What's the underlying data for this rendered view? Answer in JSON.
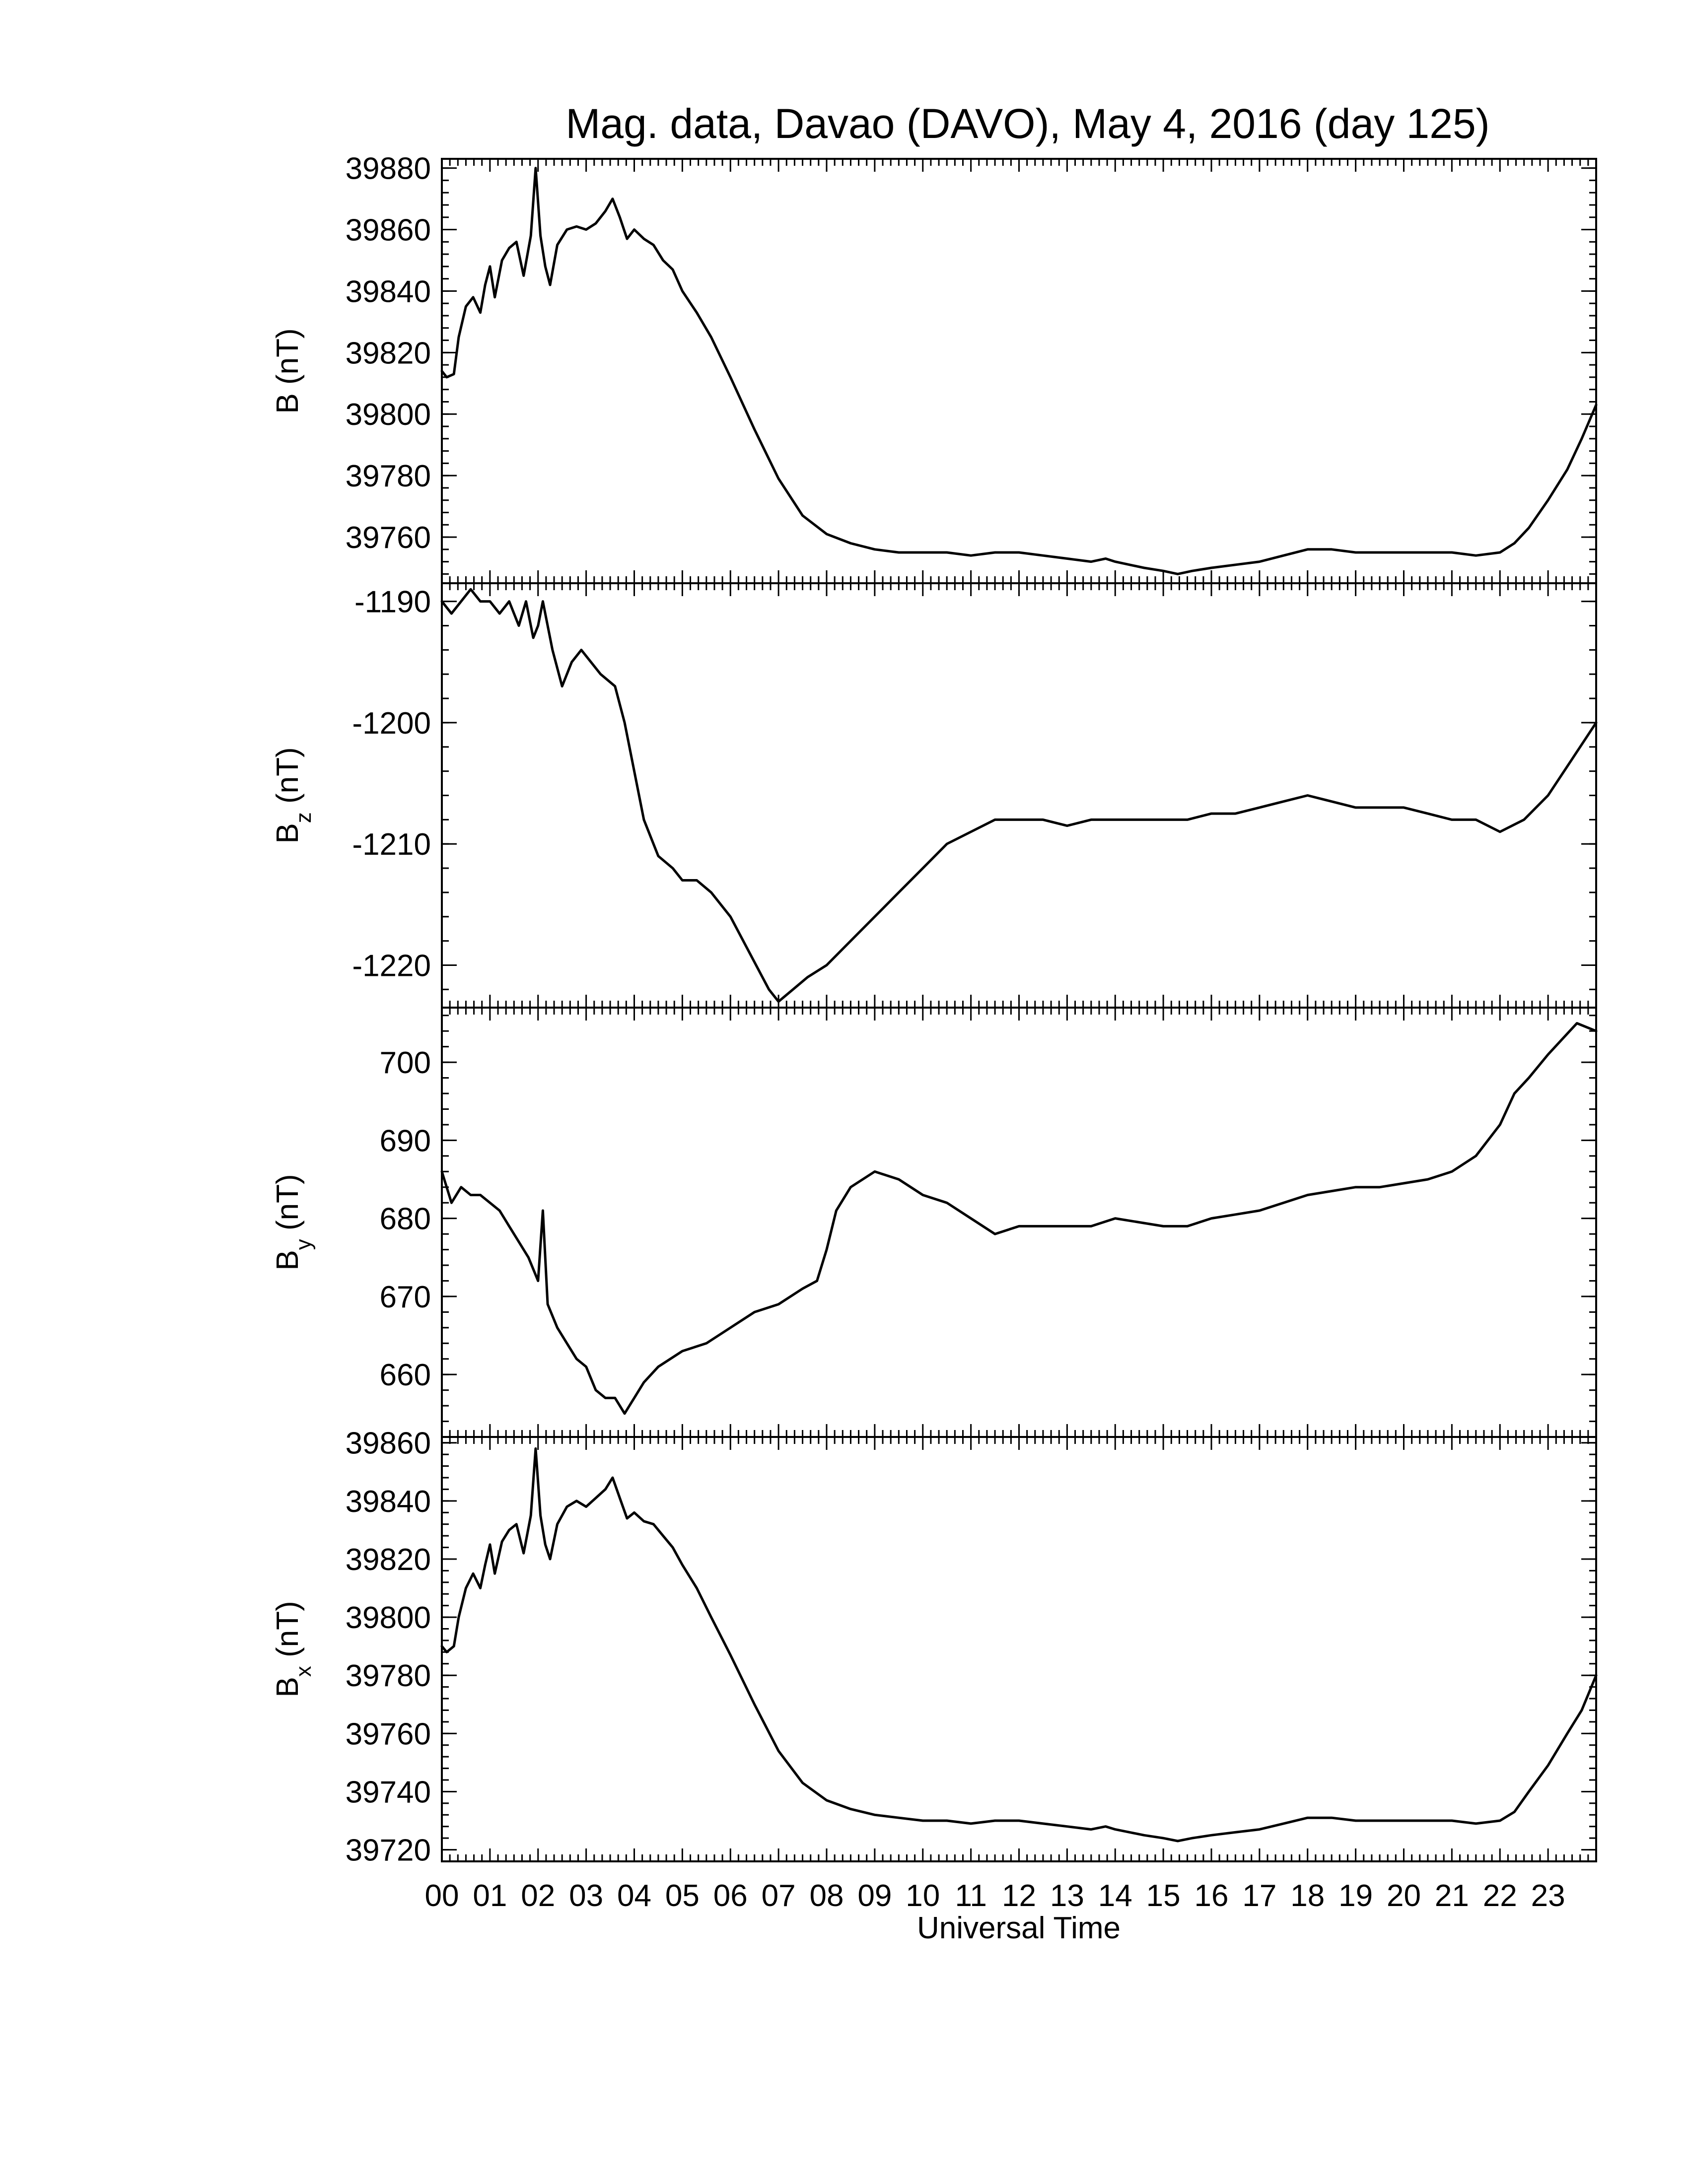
{
  "chart_data": {
    "type": "line",
    "title": "Mag. data, Davao (DAVO), May 4, 2016 (day 125)",
    "xlabel": "Universal Time",
    "x_unit": "hours UT",
    "xlim": [
      0,
      24
    ],
    "x_tick_labels": [
      "00",
      "01",
      "02",
      "03",
      "04",
      "05",
      "06",
      "07",
      "08",
      "09",
      "10",
      "11",
      "12",
      "13",
      "14",
      "15",
      "16",
      "17",
      "18",
      "19",
      "20",
      "21",
      "22",
      "23"
    ],
    "grid": false,
    "panels": [
      {
        "key": "B",
        "ylabel": "B (nT)",
        "ylabel_main": "B",
        "ylabel_sub": "",
        "ylabel_unit": " (nT)",
        "ylim": [
          39745,
          39883
        ],
        "yticks": [
          39760,
          39780,
          39800,
          39820,
          39840,
          39860,
          39880
        ],
        "x": [
          0,
          0.1,
          0.25,
          0.35,
          0.5,
          0.65,
          0.8,
          0.9,
          1.0,
          1.1,
          1.25,
          1.4,
          1.55,
          1.7,
          1.85,
          1.95,
          2.05,
          2.15,
          2.25,
          2.4,
          2.6,
          2.8,
          3.0,
          3.2,
          3.4,
          3.55,
          3.7,
          3.85,
          4.0,
          4.2,
          4.4,
          4.6,
          4.8,
          5.0,
          5.3,
          5.6,
          6.0,
          6.5,
          7.0,
          7.5,
          8.0,
          8.5,
          9.0,
          9.5,
          10.0,
          10.5,
          11.0,
          11.5,
          12.0,
          12.5,
          13.0,
          13.5,
          13.8,
          14.0,
          14.3,
          14.6,
          15.0,
          15.3,
          15.6,
          16.0,
          16.5,
          17.0,
          17.5,
          18.0,
          18.5,
          19.0,
          19.5,
          20.0,
          20.5,
          21.0,
          21.5,
          22.0,
          22.3,
          22.6,
          23.0,
          23.4,
          23.7,
          24.0
        ],
        "values": [
          39814,
          39812,
          39813,
          39825,
          39835,
          39838,
          39833,
          39842,
          39848,
          39838,
          39850,
          39854,
          39856,
          39845,
          39858,
          39880,
          39858,
          39848,
          39842,
          39855,
          39860,
          39861,
          39860,
          39862,
          39866,
          39870,
          39864,
          39857,
          39860,
          39857,
          39855,
          39850,
          39847,
          39840,
          39833,
          39825,
          39812,
          39795,
          39779,
          39767,
          39761,
          39758,
          39756,
          39755,
          39755,
          39755,
          39754,
          39755,
          39755,
          39754,
          39753,
          39752,
          39753,
          39752,
          39751,
          39750,
          39749,
          39748,
          39749,
          39750,
          39751,
          39752,
          39754,
          39756,
          39756,
          39755,
          39755,
          39755,
          39755,
          39755,
          39754,
          39755,
          39758,
          39763,
          39772,
          39782,
          39792,
          39803
        ]
      },
      {
        "key": "Bz",
        "ylabel": "Bz (nT)",
        "ylabel_main": "B",
        "ylabel_sub": "z",
        "ylabel_unit": " (nT)",
        "ylim": [
          -1223.5,
          -1188.5
        ],
        "yticks": [
          -1220,
          -1210,
          -1200,
          -1190
        ],
        "x": [
          0,
          0.2,
          0.4,
          0.6,
          0.8,
          1.0,
          1.2,
          1.4,
          1.6,
          1.75,
          1.9,
          2.0,
          2.1,
          2.3,
          2.5,
          2.7,
          2.9,
          3.1,
          3.3,
          3.6,
          3.8,
          4.0,
          4.2,
          4.5,
          4.8,
          5.0,
          5.3,
          5.6,
          6.0,
          6.4,
          6.8,
          7.0,
          7.3,
          7.6,
          8.0,
          8.5,
          9.0,
          9.5,
          10.0,
          10.5,
          11.0,
          11.5,
          12.0,
          12.5,
          13.0,
          13.5,
          14.0,
          14.5,
          15.0,
          15.5,
          16.0,
          16.5,
          17.0,
          17.5,
          18.0,
          18.5,
          19.0,
          19.5,
          20.0,
          20.5,
          21.0,
          21.5,
          22.0,
          22.5,
          23.0,
          23.5,
          24.0
        ],
        "values": [
          -1190,
          -1191,
          -1190,
          -1189,
          -1190,
          -1190,
          -1191,
          -1190,
          -1192,
          -1190,
          -1193,
          -1192,
          -1190,
          -1194,
          -1197,
          -1195,
          -1194,
          -1195,
          -1196,
          -1197,
          -1200,
          -1204,
          -1208,
          -1211,
          -1212,
          -1213,
          -1213,
          -1214,
          -1216,
          -1219,
          -1222,
          -1223,
          -1222,
          -1221,
          -1220,
          -1218,
          -1216,
          -1214,
          -1212,
          -1210,
          -1209,
          -1208,
          -1208,
          -1208,
          -1208.5,
          -1208,
          -1208,
          -1208,
          -1208,
          -1208,
          -1207.5,
          -1207.5,
          -1207,
          -1206.5,
          -1206,
          -1206.5,
          -1207,
          -1207,
          -1207,
          -1207.5,
          -1208,
          -1208,
          -1209,
          -1208,
          -1206,
          -1203,
          -1200
        ]
      },
      {
        "key": "By",
        "ylabel": "By (nT)",
        "ylabel_main": "B",
        "ylabel_sub": "y",
        "ylabel_unit": " (nT)",
        "ylim": [
          652,
          707
        ],
        "yticks": [
          660,
          670,
          680,
          690,
          700
        ],
        "x": [
          0,
          0.2,
          0.4,
          0.6,
          0.8,
          1.0,
          1.2,
          1.4,
          1.6,
          1.8,
          2.0,
          2.1,
          2.2,
          2.4,
          2.6,
          2.8,
          3.0,
          3.2,
          3.4,
          3.6,
          3.8,
          4.0,
          4.2,
          4.5,
          5.0,
          5.5,
          6.0,
          6.5,
          7.0,
          7.5,
          7.8,
          8.0,
          8.2,
          8.5,
          9.0,
          9.5,
          10.0,
          10.5,
          11.0,
          11.5,
          12.0,
          12.5,
          13.0,
          13.5,
          14.0,
          14.5,
          15.0,
          15.5,
          16.0,
          16.5,
          17.0,
          17.5,
          18.0,
          18.5,
          19.0,
          19.5,
          20.0,
          20.5,
          21.0,
          21.5,
          22.0,
          22.3,
          22.6,
          23.0,
          23.3,
          23.6,
          24.0
        ],
        "values": [
          686,
          682,
          684,
          683,
          683,
          682,
          681,
          679,
          677,
          675,
          672,
          681,
          669,
          666,
          664,
          662,
          661,
          658,
          657,
          657,
          655,
          657,
          659,
          661,
          663,
          664,
          666,
          668,
          669,
          671,
          672,
          676,
          681,
          684,
          686,
          685,
          683,
          682,
          680,
          678,
          679,
          679,
          679,
          679,
          680,
          679.5,
          679,
          679,
          680,
          680.5,
          681,
          682,
          683,
          683.5,
          684,
          684,
          684.5,
          685,
          686,
          688,
          692,
          696,
          698,
          701,
          703,
          705,
          704
        ]
      },
      {
        "key": "Bx",
        "ylabel": "Bx (nT)",
        "ylabel_main": "B",
        "ylabel_sub": "x",
        "ylabel_unit": " (nT)",
        "ylim": [
          39716,
          39862
        ],
        "yticks": [
          39720,
          39740,
          39760,
          39780,
          39800,
          39820,
          39840,
          39860
        ],
        "x": [
          0,
          0.1,
          0.25,
          0.35,
          0.5,
          0.65,
          0.8,
          0.9,
          1.0,
          1.1,
          1.25,
          1.4,
          1.55,
          1.7,
          1.85,
          1.95,
          2.05,
          2.15,
          2.25,
          2.4,
          2.6,
          2.8,
          3.0,
          3.2,
          3.4,
          3.55,
          3.7,
          3.85,
          4.0,
          4.2,
          4.4,
          4.6,
          4.8,
          5.0,
          5.3,
          5.6,
          6.0,
          6.5,
          7.0,
          7.5,
          8.0,
          8.5,
          9.0,
          9.5,
          10.0,
          10.5,
          11.0,
          11.5,
          12.0,
          12.5,
          13.0,
          13.5,
          13.8,
          14.0,
          14.3,
          14.6,
          15.0,
          15.3,
          15.6,
          16.0,
          16.5,
          17.0,
          17.5,
          18.0,
          18.5,
          19.0,
          19.5,
          20.0,
          20.5,
          21.0,
          21.5,
          22.0,
          22.3,
          22.6,
          23.0,
          23.4,
          23.7,
          24.0
        ],
        "values": [
          39790,
          39788,
          39790,
          39800,
          39810,
          39815,
          39810,
          39818,
          39825,
          39815,
          39826,
          39830,
          39832,
          39822,
          39835,
          39858,
          39835,
          39825,
          39820,
          39832,
          39838,
          39840,
          39838,
          39841,
          39844,
          39848,
          39841,
          39834,
          39836,
          39833,
          39832,
          39828,
          39824,
          39818,
          39810,
          39800,
          39787,
          39770,
          39754,
          39743,
          39737,
          39734,
          39732,
          39731,
          39730,
          39730,
          39729,
          39730,
          39730,
          39729,
          39728,
          39727,
          39728,
          39727,
          39726,
          39725,
          39724,
          39723,
          39724,
          39725,
          39726,
          39727,
          39729,
          39731,
          39731,
          39730,
          39730,
          39730,
          39730,
          39730,
          39729,
          39730,
          39733,
          39740,
          39749,
          39760,
          39768,
          39780
        ]
      }
    ]
  }
}
